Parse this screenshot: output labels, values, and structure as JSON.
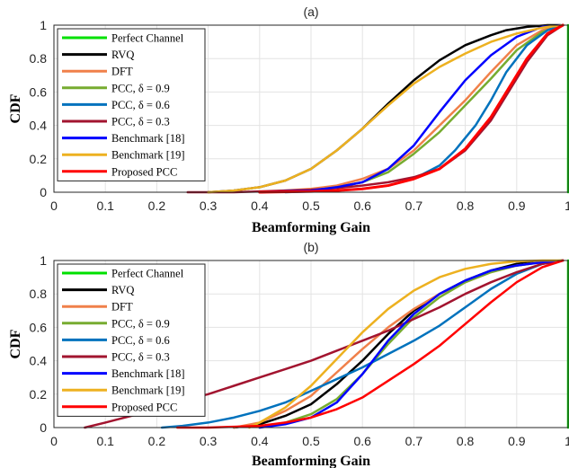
{
  "chart_data": [
    {
      "type": "line",
      "title": "(a)",
      "xlabel": "Beamforming Gain",
      "ylabel": "CDF",
      "xlim": [
        0,
        1
      ],
      "ylim": [
        0,
        1
      ],
      "xticks": [
        "0",
        "0.1",
        "0.2",
        "0.3",
        "0.4",
        "0.5",
        "0.6",
        "0.7",
        "0.8",
        "0.9",
        "1"
      ],
      "yticks": [
        "0",
        "0.2",
        "0.4",
        "0.6",
        "0.8",
        "1"
      ],
      "grid": true,
      "legend_position": "top-left",
      "series": [
        {
          "name": "Perfect Channel",
          "color": "#00e000",
          "width": 2.5,
          "x": [
            1,
            1
          ],
          "y": [
            0,
            1
          ]
        },
        {
          "name": "RVQ",
          "color": "#000000",
          "width": 2.5,
          "x": [
            0.3,
            0.35,
            0.4,
            0.45,
            0.5,
            0.55,
            0.6,
            0.65,
            0.7,
            0.75,
            0.8,
            0.85,
            0.88,
            0.92,
            0.96,
            0.985
          ],
          "y": [
            0.0,
            0.01,
            0.03,
            0.07,
            0.14,
            0.25,
            0.38,
            0.53,
            0.67,
            0.79,
            0.88,
            0.94,
            0.97,
            0.99,
            1.0,
            1.0
          ]
        },
        {
          "name": "DFT",
          "color": "#f0804a",
          "width": 2.5,
          "x": [
            0.4,
            0.5,
            0.55,
            0.6,
            0.65,
            0.7,
            0.75,
            0.8,
            0.85,
            0.9,
            0.95,
            0.99
          ],
          "y": [
            0.0,
            0.02,
            0.04,
            0.08,
            0.14,
            0.25,
            0.4,
            0.55,
            0.72,
            0.88,
            0.97,
            1.0
          ]
        },
        {
          "name": "PCC, δ = 0.9",
          "color": "#77ac30",
          "width": 2.5,
          "x": [
            0.4,
            0.5,
            0.55,
            0.6,
            0.65,
            0.7,
            0.75,
            0.8,
            0.85,
            0.9,
            0.95,
            0.99
          ],
          "y": [
            0.0,
            0.01,
            0.03,
            0.06,
            0.12,
            0.23,
            0.36,
            0.52,
            0.68,
            0.85,
            0.96,
            1.0
          ]
        },
        {
          "name": "PCC, δ = 0.6",
          "color": "#0072bd",
          "width": 2.5,
          "x": [
            0.45,
            0.55,
            0.6,
            0.65,
            0.7,
            0.75,
            0.78,
            0.82,
            0.85,
            0.88,
            0.92,
            0.96,
            0.99
          ],
          "y": [
            0.0,
            0.01,
            0.02,
            0.04,
            0.08,
            0.16,
            0.25,
            0.4,
            0.55,
            0.72,
            0.88,
            0.97,
            1.0
          ]
        },
        {
          "name": "PCC, δ = 0.3",
          "color": "#a2142f",
          "width": 2.5,
          "x": [
            0.26,
            0.3,
            0.35,
            0.4,
            0.45,
            0.5,
            0.55,
            0.6,
            0.65,
            0.7,
            0.75,
            0.8,
            0.85,
            0.88,
            0.92,
            0.96,
            0.99
          ],
          "y": [
            0.0,
            0.0,
            0.0,
            0.005,
            0.01,
            0.015,
            0.025,
            0.04,
            0.06,
            0.09,
            0.14,
            0.25,
            0.43,
            0.58,
            0.78,
            0.94,
            1.0
          ]
        },
        {
          "name": "Benchmark [18]",
          "color": "#0000ff",
          "width": 2.5,
          "x": [
            0.4,
            0.5,
            0.55,
            0.6,
            0.65,
            0.7,
            0.75,
            0.8,
            0.85,
            0.9,
            0.95,
            0.99
          ],
          "y": [
            0.0,
            0.01,
            0.03,
            0.06,
            0.14,
            0.28,
            0.48,
            0.67,
            0.82,
            0.93,
            0.99,
            1.0
          ]
        },
        {
          "name": "Benchmark [19]",
          "color": "#edb120",
          "width": 2.5,
          "x": [
            0.3,
            0.35,
            0.4,
            0.45,
            0.5,
            0.55,
            0.6,
            0.65,
            0.7,
            0.75,
            0.8,
            0.85,
            0.9,
            0.95,
            0.99
          ],
          "y": [
            0.0,
            0.01,
            0.03,
            0.07,
            0.14,
            0.25,
            0.38,
            0.52,
            0.65,
            0.75,
            0.83,
            0.9,
            0.95,
            0.985,
            1.0
          ]
        },
        {
          "name": "Proposed PCC",
          "color": "#ff0000",
          "width": 3,
          "x": [
            0.4,
            0.5,
            0.55,
            0.6,
            0.65,
            0.7,
            0.75,
            0.8,
            0.85,
            0.88,
            0.92,
            0.96,
            0.99
          ],
          "y": [
            0.0,
            0.005,
            0.01,
            0.02,
            0.04,
            0.08,
            0.14,
            0.26,
            0.45,
            0.6,
            0.8,
            0.95,
            1.0
          ]
        }
      ]
    },
    {
      "type": "line",
      "title": "(b)",
      "xlabel": "Beamforming Gain",
      "ylabel": "CDF",
      "xlim": [
        0,
        1
      ],
      "ylim": [
        0,
        1
      ],
      "xticks": [
        "0",
        "0.1",
        "0.2",
        "0.3",
        "0.4",
        "0.5",
        "0.6",
        "0.7",
        "0.8",
        "0.9",
        "1"
      ],
      "yticks": [
        "0",
        "0.2",
        "0.4",
        "0.6",
        "0.8",
        "1"
      ],
      "grid": true,
      "legend_position": "top-left",
      "series": [
        {
          "name": "Perfect Channel",
          "color": "#00e000",
          "width": 2.5,
          "x": [
            1,
            1
          ],
          "y": [
            0,
            1
          ]
        },
        {
          "name": "RVQ",
          "color": "#000000",
          "width": 2.5,
          "x": [
            0.35,
            0.4,
            0.45,
            0.5,
            0.55,
            0.6,
            0.65,
            0.7,
            0.75,
            0.8,
            0.85,
            0.9,
            0.95,
            0.99
          ],
          "y": [
            0.0,
            0.02,
            0.07,
            0.14,
            0.26,
            0.4,
            0.56,
            0.7,
            0.8,
            0.88,
            0.94,
            0.98,
            0.995,
            1.0
          ]
        },
        {
          "name": "DFT",
          "color": "#f0804a",
          "width": 2.5,
          "x": [
            0.35,
            0.4,
            0.45,
            0.5,
            0.55,
            0.6,
            0.65,
            0.7,
            0.75,
            0.8,
            0.85,
            0.9,
            0.95,
            0.99
          ],
          "y": [
            0.0,
            0.03,
            0.1,
            0.19,
            0.33,
            0.47,
            0.6,
            0.71,
            0.8,
            0.87,
            0.93,
            0.97,
            0.99,
            1.0
          ]
        },
        {
          "name": "PCC, δ = 0.9",
          "color": "#77ac30",
          "width": 2.5,
          "x": [
            0.4,
            0.45,
            0.5,
            0.55,
            0.6,
            0.65,
            0.7,
            0.75,
            0.8,
            0.85,
            0.9,
            0.95,
            0.99
          ],
          "y": [
            0.0,
            0.03,
            0.08,
            0.17,
            0.32,
            0.5,
            0.66,
            0.78,
            0.87,
            0.93,
            0.97,
            0.99,
            1.0
          ]
        },
        {
          "name": "PCC, δ = 0.6",
          "color": "#0072bd",
          "width": 2.5,
          "x": [
            0.21,
            0.25,
            0.3,
            0.35,
            0.4,
            0.45,
            0.5,
            0.55,
            0.6,
            0.65,
            0.7,
            0.75,
            0.8,
            0.85,
            0.9,
            0.95,
            0.99
          ],
          "y": [
            0.0,
            0.01,
            0.03,
            0.06,
            0.1,
            0.15,
            0.22,
            0.29,
            0.36,
            0.44,
            0.52,
            0.61,
            0.72,
            0.83,
            0.92,
            0.98,
            1.0
          ]
        },
        {
          "name": "PCC, δ = 0.3",
          "color": "#a2142f",
          "width": 2.5,
          "x": [
            0.06,
            0.1,
            0.15,
            0.2,
            0.25,
            0.3,
            0.35,
            0.4,
            0.45,
            0.5,
            0.55,
            0.6,
            0.65,
            0.7,
            0.75,
            0.8,
            0.85,
            0.9,
            0.95,
            0.99
          ],
          "y": [
            0.0,
            0.03,
            0.07,
            0.11,
            0.16,
            0.2,
            0.25,
            0.3,
            0.35,
            0.4,
            0.46,
            0.52,
            0.58,
            0.65,
            0.72,
            0.8,
            0.87,
            0.93,
            0.98,
            1.0
          ]
        },
        {
          "name": "Benchmark [18]",
          "color": "#0000ff",
          "width": 2.5,
          "x": [
            0.4,
            0.45,
            0.5,
            0.55,
            0.6,
            0.65,
            0.7,
            0.75,
            0.8,
            0.85,
            0.9,
            0.95,
            0.99
          ],
          "y": [
            0.0,
            0.02,
            0.06,
            0.15,
            0.32,
            0.52,
            0.68,
            0.8,
            0.88,
            0.94,
            0.97,
            0.99,
            1.0
          ]
        },
        {
          "name": "Benchmark [19]",
          "color": "#edb120",
          "width": 2.5,
          "x": [
            0.38,
            0.4,
            0.45,
            0.5,
            0.55,
            0.6,
            0.65,
            0.7,
            0.75,
            0.8,
            0.85,
            0.9,
            0.95,
            0.99
          ],
          "y": [
            0.0,
            0.03,
            0.12,
            0.25,
            0.41,
            0.57,
            0.71,
            0.82,
            0.9,
            0.95,
            0.98,
            0.995,
            1.0,
            1.0
          ]
        },
        {
          "name": "Proposed PCC",
          "color": "#ff0000",
          "width": 2.5,
          "x": [
            0.24,
            0.3,
            0.35,
            0.4,
            0.45,
            0.5,
            0.55,
            0.6,
            0.65,
            0.7,
            0.75,
            0.8,
            0.85,
            0.9,
            0.95,
            0.99
          ],
          "y": [
            0.0,
            0.0,
            0.005,
            0.01,
            0.03,
            0.06,
            0.11,
            0.18,
            0.28,
            0.38,
            0.49,
            0.62,
            0.75,
            0.87,
            0.96,
            1.0
          ]
        }
      ]
    }
  ]
}
